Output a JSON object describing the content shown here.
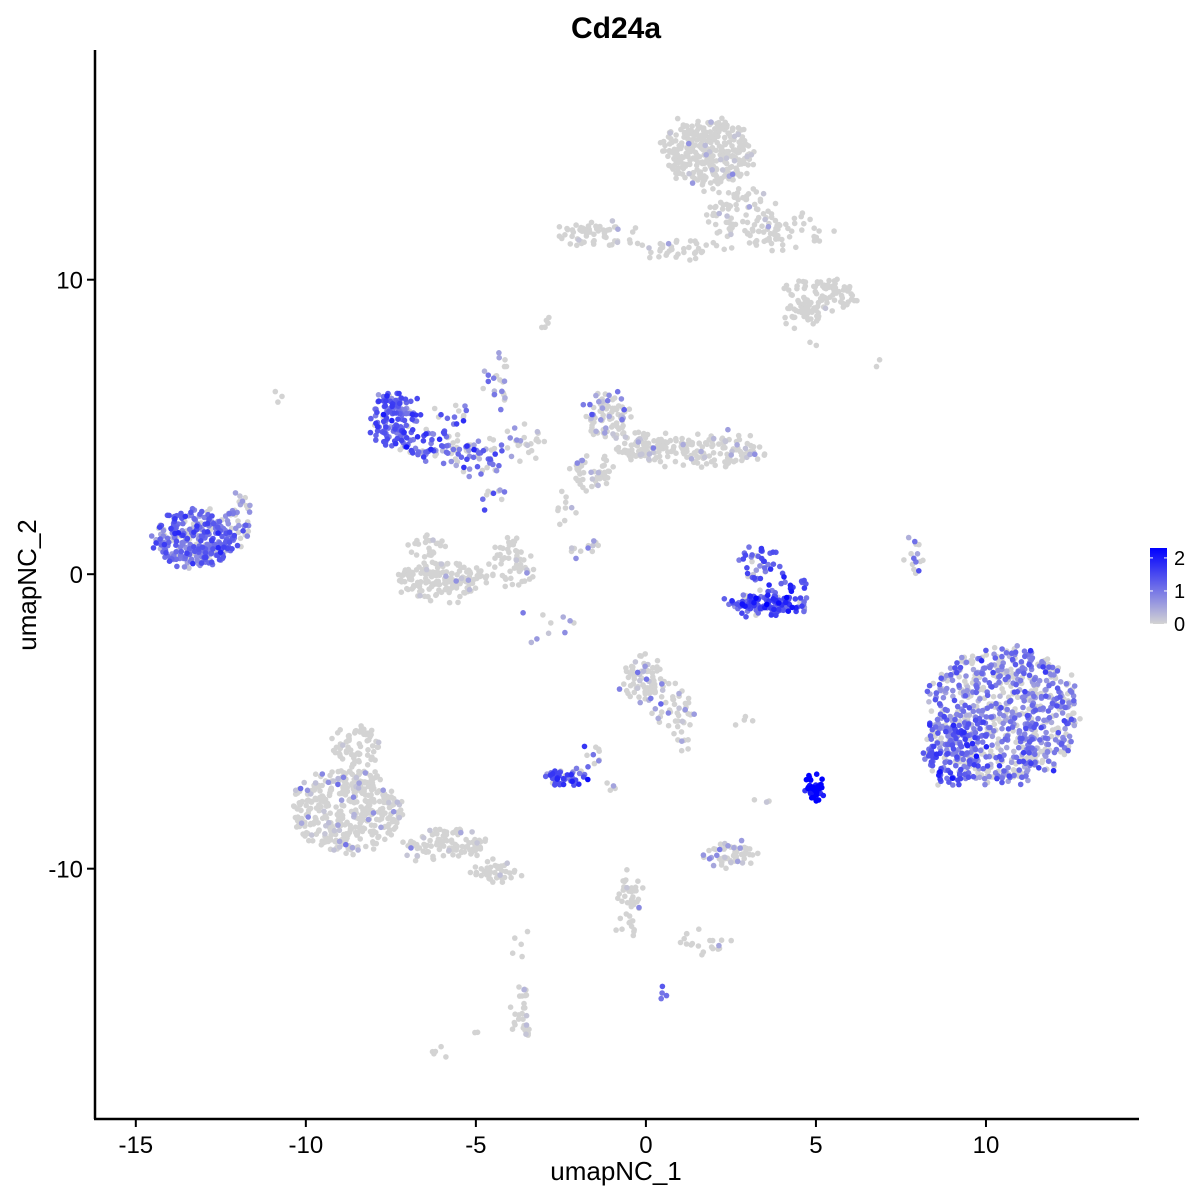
{
  "chart_data": {
    "type": "scatter",
    "title": "Cd24a",
    "xlabel": "umapNC_1",
    "ylabel": "umapNC_2",
    "xlim": [
      -16.2,
      14.5
    ],
    "ylim": [
      -18.5,
      17.8
    ],
    "x_ticks": [
      -15,
      -10,
      -5,
      0,
      5,
      10
    ],
    "x_tick_labels": [
      "-15",
      "-10",
      "-5",
      "0",
      "5",
      "10"
    ],
    "y_ticks": [
      -10,
      0,
      10
    ],
    "y_tick_labels": [
      "-10",
      "0",
      "10"
    ],
    "grid": false,
    "color_scale": {
      "low": "#d3d3d3",
      "high": "#0000ff",
      "min": 0,
      "max": 2.3,
      "ticks": [
        0,
        1,
        2
      ],
      "tick_labels": [
        "0",
        "1",
        "2"
      ],
      "legend_position": "right"
    },
    "clusters": [
      {
        "cx": 1.8,
        "cy": 14.3,
        "rx": 1.3,
        "ry": 1.1,
        "n": 340,
        "expr_mean": 0.1,
        "expr_frac": 0.05
      },
      {
        "cx": 2.8,
        "cy": 12.2,
        "rx": 1.0,
        "ry": 0.9,
        "n": 80,
        "expr_mean": 0.1,
        "expr_frac": 0.05
      },
      {
        "cx": -1.5,
        "cy": 11.6,
        "rx": 1.2,
        "ry": 0.35,
        "n": 60,
        "expr_mean": 0.3,
        "expr_frac": 0.08
      },
      {
        "cx": 1.0,
        "cy": 11.0,
        "rx": 1.5,
        "ry": 0.3,
        "n": 40,
        "expr_mean": 0.3,
        "expr_frac": 0.06
      },
      {
        "cx": 4.2,
        "cy": 11.6,
        "rx": 1.2,
        "ry": 0.6,
        "n": 50,
        "expr_mean": 0.1,
        "expr_frac": 0.04
      },
      {
        "cx": 5.2,
        "cy": 9.5,
        "rx": 1.0,
        "ry": 0.5,
        "n": 80,
        "expr_mean": 0.1,
        "expr_frac": 0.04
      },
      {
        "cx": 4.6,
        "cy": 8.9,
        "rx": 0.6,
        "ry": 0.45,
        "n": 40,
        "expr_mean": 0.1,
        "expr_frac": 0.04
      },
      {
        "cx": -7.4,
        "cy": 5.3,
        "rx": 0.6,
        "ry": 0.9,
        "n": 130,
        "expr_mean": 1.3,
        "expr_frac": 0.9
      },
      {
        "cx": -6.4,
        "cy": 4.4,
        "rx": 0.9,
        "ry": 0.5,
        "n": 60,
        "expr_mean": 1.1,
        "expr_frac": 0.7
      },
      {
        "cx": -5.0,
        "cy": 4.0,
        "rx": 0.8,
        "ry": 0.6,
        "n": 60,
        "expr_mean": 1.0,
        "expr_frac": 0.6
      },
      {
        "cx": -5.8,
        "cy": 5.4,
        "rx": 0.5,
        "ry": 0.3,
        "n": 15,
        "expr_mean": 1.2,
        "expr_frac": 0.7
      },
      {
        "cx": -4.4,
        "cy": 6.6,
        "rx": 0.3,
        "ry": 1.0,
        "n": 25,
        "expr_mean": 0.8,
        "expr_frac": 0.4
      },
      {
        "cx": -3.6,
        "cy": 4.5,
        "rx": 0.6,
        "ry": 0.6,
        "n": 25,
        "expr_mean": 0.5,
        "expr_frac": 0.3
      },
      {
        "cx": -13.3,
        "cy": 1.2,
        "rx": 1.1,
        "ry": 0.9,
        "n": 280,
        "expr_mean": 1.1,
        "expr_frac": 0.85
      },
      {
        "cx": -12.1,
        "cy": 1.6,
        "rx": 0.5,
        "ry": 0.6,
        "n": 40,
        "expr_mean": 0.9,
        "expr_frac": 0.6
      },
      {
        "cx": -12.0,
        "cy": 2.4,
        "rx": 0.5,
        "ry": 0.3,
        "n": 15,
        "expr_mean": 0.7,
        "expr_frac": 0.4
      },
      {
        "cx": -6.0,
        "cy": -0.2,
        "rx": 1.3,
        "ry": 0.55,
        "n": 160,
        "expr_mean": 0.2,
        "expr_frac": 0.06
      },
      {
        "cx": -3.9,
        "cy": 0.4,
        "rx": 0.6,
        "ry": 0.8,
        "n": 60,
        "expr_mean": 0.3,
        "expr_frac": 0.08
      },
      {
        "cx": -6.4,
        "cy": 0.8,
        "rx": 0.6,
        "ry": 0.5,
        "n": 30,
        "expr_mean": 0.2,
        "expr_frac": 0.05
      },
      {
        "cx": -4.5,
        "cy": 2.6,
        "rx": 0.3,
        "ry": 0.4,
        "n": 10,
        "expr_mean": 1.0,
        "expr_frac": 0.5
      },
      {
        "cx": -1.1,
        "cy": 5.4,
        "rx": 0.6,
        "ry": 0.8,
        "n": 90,
        "expr_mean": 0.6,
        "expr_frac": 0.3
      },
      {
        "cx": 0.2,
        "cy": 4.3,
        "rx": 1.0,
        "ry": 0.5,
        "n": 100,
        "expr_mean": 0.3,
        "expr_frac": 0.15
      },
      {
        "cx": 2.2,
        "cy": 4.2,
        "rx": 1.2,
        "ry": 0.5,
        "n": 110,
        "expr_mean": 0.3,
        "expr_frac": 0.15
      },
      {
        "cx": -1.6,
        "cy": 3.4,
        "rx": 0.6,
        "ry": 0.6,
        "n": 50,
        "expr_mean": 0.3,
        "expr_frac": 0.12
      },
      {
        "cx": -2.3,
        "cy": 2.2,
        "rx": 0.3,
        "ry": 0.5,
        "n": 10,
        "expr_mean": 0.4,
        "expr_frac": 0.2
      },
      {
        "cx": -1.8,
        "cy": 1.0,
        "rx": 0.6,
        "ry": 0.4,
        "n": 12,
        "expr_mean": 0.6,
        "expr_frac": 0.4
      },
      {
        "cx": 3.6,
        "cy": -1.0,
        "rx": 1.1,
        "ry": 0.3,
        "n": 130,
        "expr_mean": 1.4,
        "expr_frac": 0.95
      },
      {
        "cx": 3.3,
        "cy": 0.4,
        "rx": 0.4,
        "ry": 0.7,
        "n": 40,
        "expr_mean": 1.3,
        "expr_frac": 0.85
      },
      {
        "cx": 4.3,
        "cy": -0.3,
        "rx": 0.3,
        "ry": 0.4,
        "n": 15,
        "expr_mean": 1.6,
        "expr_frac": 0.95
      },
      {
        "cx": 7.9,
        "cy": 0.6,
        "rx": 0.15,
        "ry": 0.7,
        "n": 15,
        "expr_mean": 0.9,
        "expr_frac": 0.5
      },
      {
        "cx": 10.5,
        "cy": -4.8,
        "rx": 2.2,
        "ry": 2.3,
        "n": 800,
        "expr_mean": 0.9,
        "expr_frac": 0.6
      },
      {
        "cx": 9.0,
        "cy": -6.1,
        "rx": 0.8,
        "ry": 1.1,
        "n": 130,
        "expr_mean": 1.3,
        "expr_frac": 0.85
      },
      {
        "cx": 0.0,
        "cy": -3.6,
        "rx": 0.7,
        "ry": 0.8,
        "n": 80,
        "expr_mean": 0.3,
        "expr_frac": 0.2
      },
      {
        "cx": 0.8,
        "cy": -4.6,
        "rx": 0.7,
        "ry": 0.6,
        "n": 40,
        "expr_mean": 0.3,
        "expr_frac": 0.2
      },
      {
        "cx": 1.1,
        "cy": -5.6,
        "rx": 0.3,
        "ry": 0.3,
        "n": 8,
        "expr_mean": 0.6,
        "expr_frac": 0.3
      },
      {
        "cx": -2.4,
        "cy": -6.9,
        "rx": 0.5,
        "ry": 0.25,
        "n": 50,
        "expr_mean": 1.4,
        "expr_frac": 0.9
      },
      {
        "cx": -1.6,
        "cy": -6.1,
        "rx": 0.3,
        "ry": 0.4,
        "n": 10,
        "expr_mean": 1.0,
        "expr_frac": 0.5
      },
      {
        "cx": 5.0,
        "cy": -7.3,
        "rx": 0.2,
        "ry": 0.35,
        "n": 40,
        "expr_mean": 2.2,
        "expr_frac": 1.0
      },
      {
        "cx": 2.4,
        "cy": -9.5,
        "rx": 0.7,
        "ry": 0.3,
        "n": 60,
        "expr_mean": 0.5,
        "expr_frac": 0.3
      },
      {
        "cx": -8.8,
        "cy": -8.0,
        "rx": 1.6,
        "ry": 1.4,
        "n": 400,
        "expr_mean": 0.3,
        "expr_frac": 0.12
      },
      {
        "cx": -8.5,
        "cy": -5.9,
        "rx": 0.6,
        "ry": 0.7,
        "n": 70,
        "expr_mean": 0.2,
        "expr_frac": 0.06
      },
      {
        "cx": -5.8,
        "cy": -9.2,
        "rx": 1.2,
        "ry": 0.45,
        "n": 100,
        "expr_mean": 0.2,
        "expr_frac": 0.05
      },
      {
        "cx": -4.4,
        "cy": -10.1,
        "rx": 0.7,
        "ry": 0.3,
        "n": 40,
        "expr_mean": 0.2,
        "expr_frac": 0.05
      },
      {
        "cx": -0.5,
        "cy": -11.2,
        "rx": 0.3,
        "ry": 1.1,
        "n": 45,
        "expr_mean": 0.2,
        "expr_frac": 0.05
      },
      {
        "cx": 1.6,
        "cy": -12.5,
        "rx": 0.8,
        "ry": 0.3,
        "n": 20,
        "expr_mean": 0.2,
        "expr_frac": 0.05
      },
      {
        "cx": -3.6,
        "cy": -14.8,
        "rx": 0.25,
        "ry": 0.9,
        "n": 30,
        "expr_mean": 0.4,
        "expr_frac": 0.15
      },
      {
        "cx": -6.1,
        "cy": -16.3,
        "rx": 0.2,
        "ry": 0.1,
        "n": 5,
        "expr_mean": 0.0,
        "expr_frac": 0.0
      },
      {
        "cx": 0.6,
        "cy": -14.2,
        "rx": 0.1,
        "ry": 0.08,
        "n": 4,
        "expr_mean": 1.0,
        "expr_frac": 1.0
      },
      {
        "cx": -3.8,
        "cy": -12.5,
        "rx": 0.1,
        "ry": 0.6,
        "n": 5,
        "expr_mean": 0.2,
        "expr_frac": 0.1
      },
      {
        "cx": -3.0,
        "cy": -1.6,
        "rx": 0.8,
        "ry": 0.8,
        "n": 10,
        "expr_mean": 0.6,
        "expr_frac": 0.3
      },
      {
        "cx": -10.8,
        "cy": 6.0,
        "rx": 0.1,
        "ry": 0.1,
        "n": 3,
        "expr_mean": 0.0,
        "expr_frac": 0.0
      },
      {
        "cx": -2.9,
        "cy": 8.5,
        "rx": 0.2,
        "ry": 0.2,
        "n": 6,
        "expr_mean": 0.0,
        "expr_frac": 0.0
      },
      {
        "cx": 2.9,
        "cy": -5.0,
        "rx": 0.3,
        "ry": 0.1,
        "n": 4,
        "expr_mean": 0.0,
        "expr_frac": 0.0
      },
      {
        "cx": 3.4,
        "cy": -7.7,
        "rx": 0.2,
        "ry": 0.1,
        "n": 3,
        "expr_mean": 0.5,
        "expr_frac": 0.5
      },
      {
        "cx": -0.9,
        "cy": -7.2,
        "rx": 0.15,
        "ry": 0.15,
        "n": 4,
        "expr_mean": 0.8,
        "expr_frac": 0.5
      },
      {
        "cx": 5.1,
        "cy": 7.9,
        "rx": 0.1,
        "ry": 0.1,
        "n": 2,
        "expr_mean": 0.0,
        "expr_frac": 0.0
      },
      {
        "cx": 6.8,
        "cy": 7.1,
        "rx": 0.1,
        "ry": 0.1,
        "n": 2,
        "expr_mean": 0.0,
        "expr_frac": 0.0
      },
      {
        "cx": -4.9,
        "cy": -15.5,
        "rx": 0.1,
        "ry": 0.1,
        "n": 2,
        "expr_mean": 0.0,
        "expr_frac": 0.0
      }
    ]
  }
}
